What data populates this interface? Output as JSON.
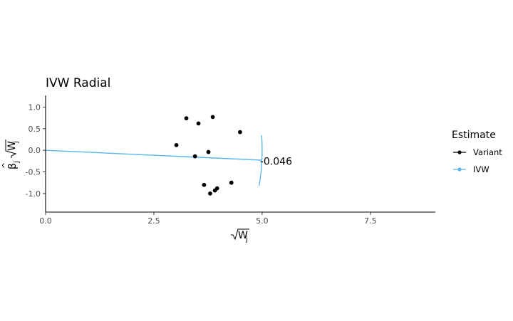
{
  "chart_data": {
    "type": "scatter",
    "title": "IVW Radial",
    "xlabel": "√W_j",
    "ylabel": "β̂_j √W_j",
    "xlim": [
      0,
      9
    ],
    "ylim": [
      -1.43,
      1.27
    ],
    "x_ticks": [
      "0.0",
      "2.5",
      "5.0",
      "7.5"
    ],
    "y_ticks": [
      "1.0",
      "0.5",
      "0.0",
      "-0.5",
      "-1.0"
    ],
    "grid": false,
    "legend": {
      "title": "Estimate",
      "position": "right",
      "entries": [
        {
          "label": "Variant",
          "color": "#000000",
          "marker": "point"
        },
        {
          "label": "IVW",
          "color": "#56B4E9",
          "marker": "line"
        }
      ]
    },
    "series": [
      {
        "name": "Variant",
        "color": "#000000",
        "points": [
          {
            "x": 3.02,
            "y": 0.12
          },
          {
            "x": 3.25,
            "y": 0.74
          },
          {
            "x": 3.45,
            "y": -0.14
          },
          {
            "x": 3.53,
            "y": 0.62
          },
          {
            "x": 3.66,
            "y": -0.8
          },
          {
            "x": 3.76,
            "y": -0.04
          },
          {
            "x": 3.8,
            "y": -1.0
          },
          {
            "x": 3.86,
            "y": 0.77
          },
          {
            "x": 3.91,
            "y": -0.93
          },
          {
            "x": 3.96,
            "y": -0.88
          },
          {
            "x": 4.29,
            "y": -0.75
          },
          {
            "x": 4.49,
            "y": 0.42
          }
        ]
      },
      {
        "name": "IVW",
        "color": "#56B4E9",
        "slope": -0.046,
        "line_x": [
          0,
          5
        ],
        "arc_center": [
          0,
          0
        ],
        "arc_radius": 5,
        "arc_y_range": [
          -0.82,
          0.35
        ]
      }
    ],
    "annotations": [
      {
        "text": "-0.046",
        "x": 4.95,
        "y": -0.25
      }
    ]
  }
}
